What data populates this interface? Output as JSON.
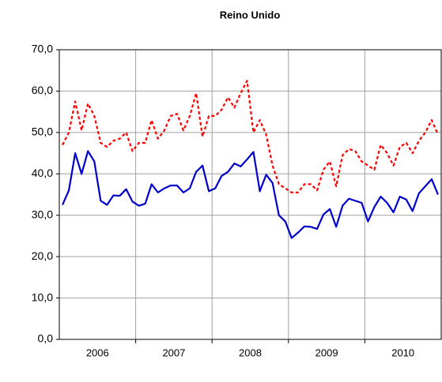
{
  "chart_data": {
    "type": "line",
    "title": "Reino Unido",
    "categories": [
      null,
      null,
      null,
      null,
      null,
      null,
      "2006",
      null,
      null,
      null,
      null,
      null,
      null,
      null,
      null,
      null,
      null,
      null,
      "2007",
      null,
      null,
      null,
      null,
      null,
      null,
      null,
      null,
      null,
      null,
      null,
      "2008",
      null,
      null,
      null,
      null,
      null,
      null,
      null,
      null,
      null,
      null,
      null,
      "2009",
      null,
      null,
      null,
      null,
      null,
      null,
      null,
      null,
      null,
      null,
      null,
      "2010",
      null,
      null,
      null,
      null,
      null
    ],
    "series": [
      {
        "color": "#0000cc",
        "dashed": false,
        "values": [
          32.5,
          36,
          45,
          40,
          45.5,
          43,
          33.5,
          32.5,
          34.8,
          34.7,
          36.3,
          33.3,
          32.3,
          32.8,
          37.5,
          35.5,
          36.5,
          37.2,
          37.2,
          35.5,
          36.5,
          40.5,
          42,
          35.8,
          36.5,
          39.5,
          40.5,
          42.5,
          41.8,
          43.5,
          45.3,
          35.8,
          39.8,
          37.8,
          30,
          28.5,
          24.5,
          25.8,
          27.3,
          27.2,
          26.7,
          30.2,
          31.5,
          27.2,
          32.3,
          34,
          33.5,
          33,
          28.5,
          32,
          34.5,
          33,
          30.7,
          34.5,
          33.8,
          31,
          35.3,
          37,
          38.7,
          35
        ]
      },
      {
        "color": "#ff0000",
        "dashed": true,
        "values": [
          47,
          50,
          57.5,
          50.5,
          57,
          54,
          47.5,
          46.5,
          48,
          48.5,
          50,
          45.5,
          47.5,
          47.5,
          53,
          48.5,
          50.5,
          54,
          54.5,
          50.5,
          54,
          59.5,
          49,
          54,
          54,
          55.5,
          58.5,
          56,
          59.5,
          62.5,
          50,
          53,
          49.5,
          42,
          37.5,
          36.5,
          35.5,
          35.5,
          37.5,
          37.5,
          36,
          41,
          43,
          37,
          44.5,
          46,
          45.5,
          43,
          42,
          41,
          47,
          45,
          42,
          46.5,
          47.5,
          45,
          48,
          50,
          53,
          49.5
        ]
      }
    ],
    "ylim": [
      0,
      70
    ],
    "yticks": [
      {
        "value": 0,
        "label": "0,0"
      },
      {
        "value": 10,
        "label": "10,0"
      },
      {
        "value": 20,
        "label": "20,0"
      },
      {
        "value": 30,
        "label": "30,0"
      },
      {
        "value": 40,
        "label": "40,0"
      },
      {
        "value": 50,
        "label": "50,0"
      },
      {
        "value": 60,
        "label": "60,0"
      },
      {
        "value": 70,
        "label": "70,0"
      }
    ],
    "grid": true
  }
}
